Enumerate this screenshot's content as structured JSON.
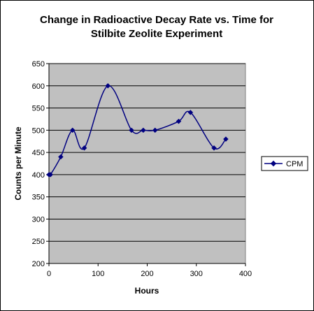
{
  "chart_data": {
    "type": "line",
    "title_line1": "Change in Radioactive Decay Rate vs. Time for",
    "title_line2": "Stilbite Zeolite Experiment",
    "xlabel": "Hours",
    "ylabel": "Counts per Minute",
    "xlim": [
      0,
      400
    ],
    "ylim": [
      200,
      650
    ],
    "xticks": [
      0,
      100,
      200,
      300,
      400
    ],
    "yticks": [
      200,
      250,
      300,
      350,
      400,
      450,
      500,
      550,
      600,
      650
    ],
    "grid": "horizontal",
    "legend_position": "right",
    "plot_background": "#c0c0c0",
    "series": [
      {
        "name": "CPM",
        "color": "#000080",
        "marker": "diamond",
        "smooth": true,
        "x": [
          0,
          3,
          24,
          48,
          72,
          120,
          168,
          192,
          216,
          264,
          288,
          336,
          360
        ],
        "y": [
          400,
          400,
          440,
          500,
          460,
          600,
          500,
          500,
          500,
          520,
          540,
          460,
          480
        ]
      }
    ]
  }
}
